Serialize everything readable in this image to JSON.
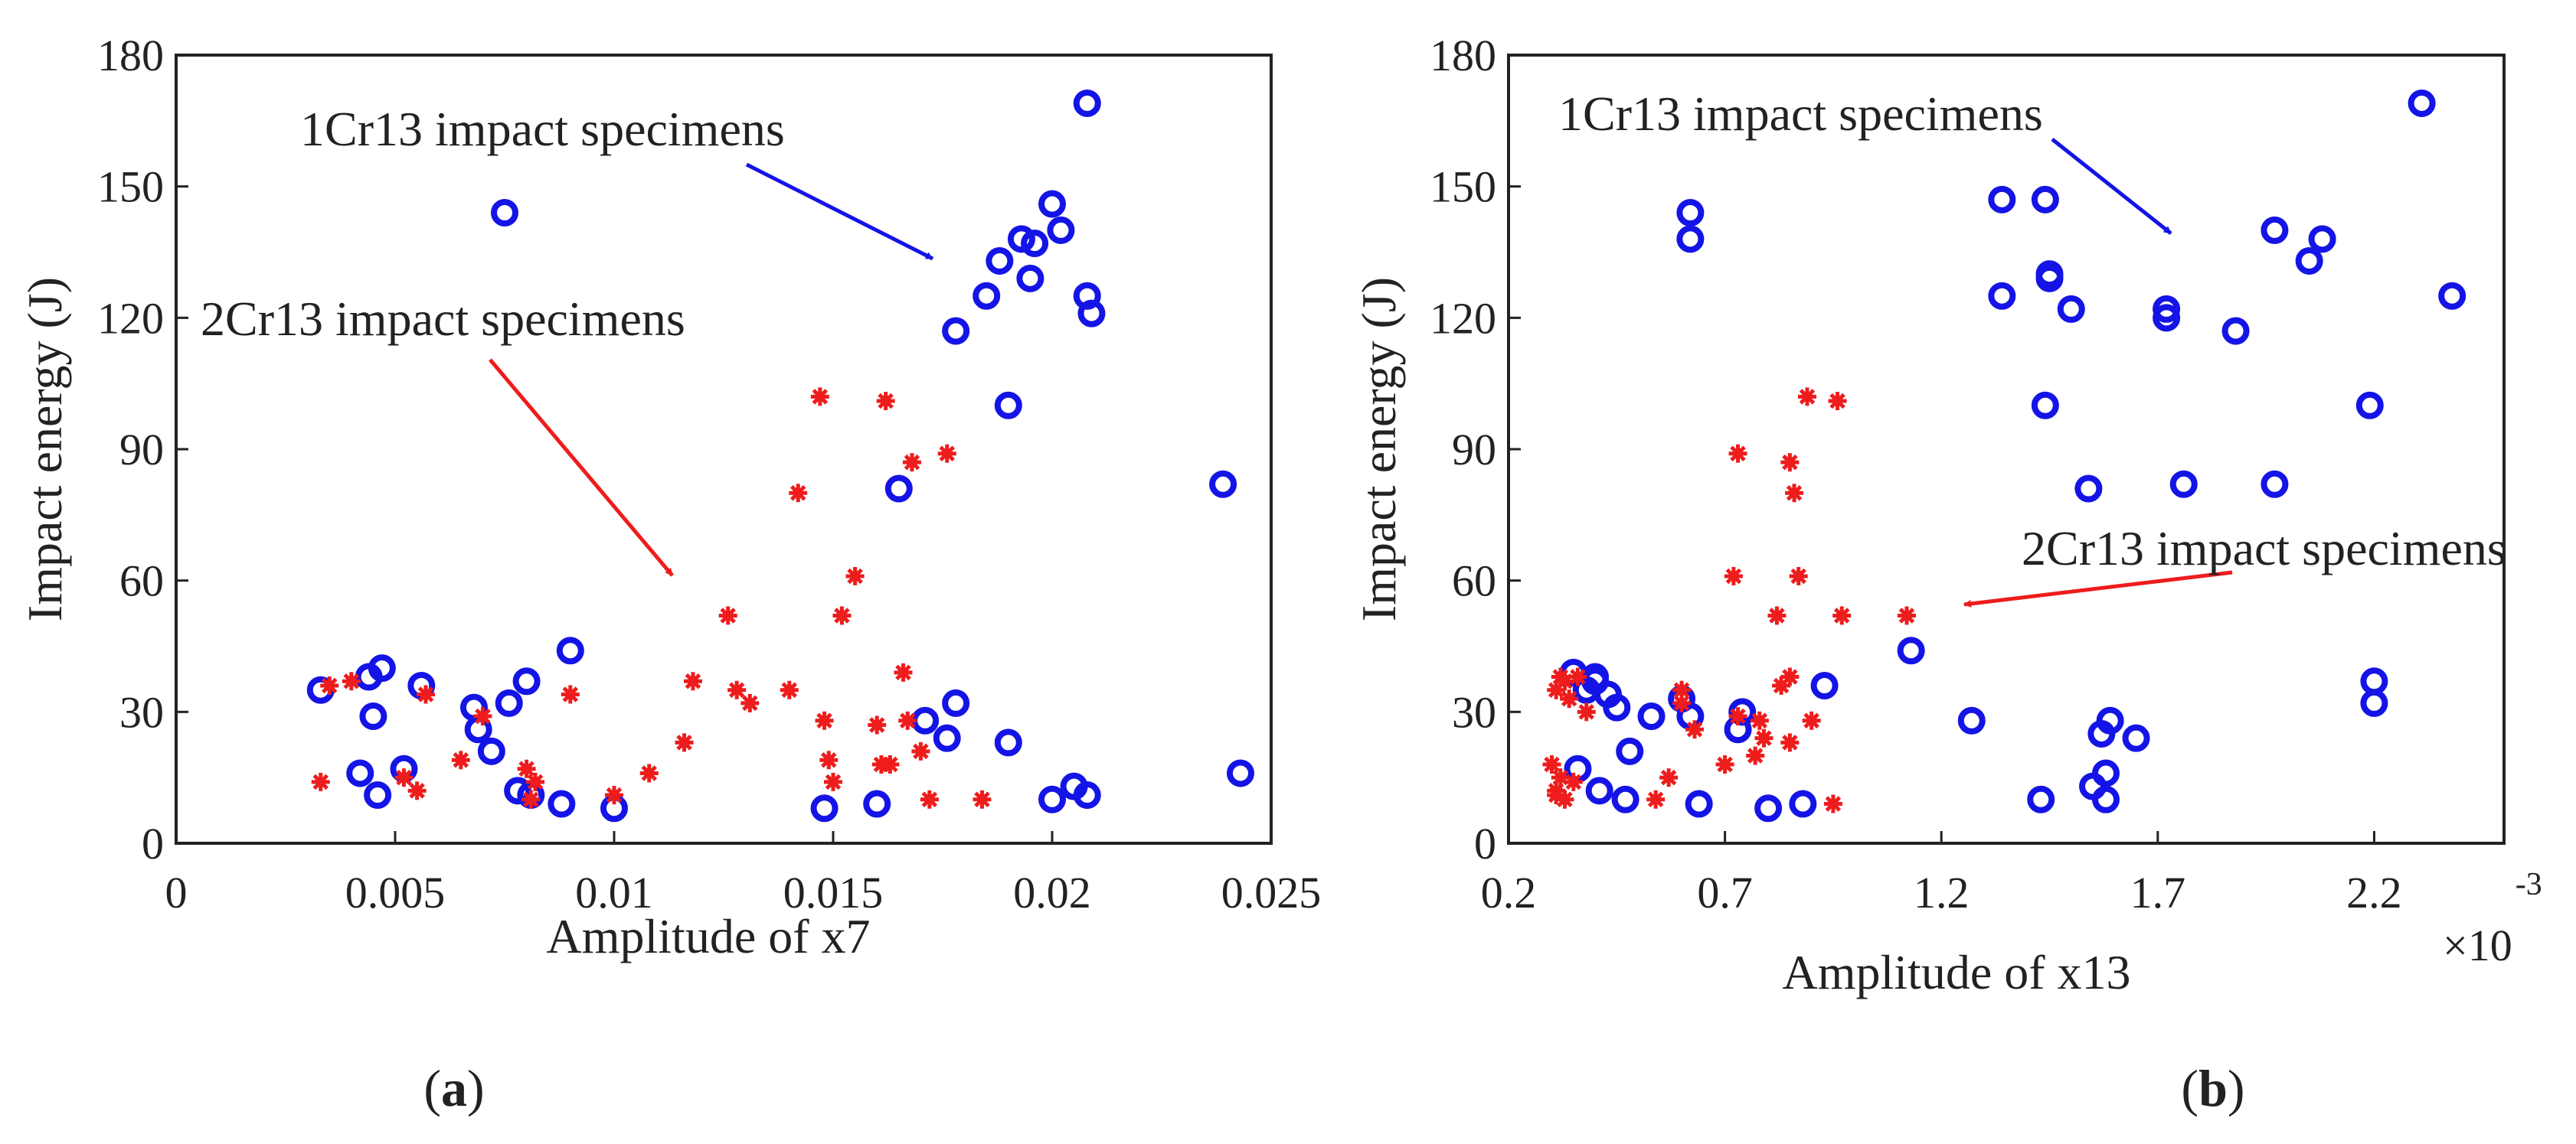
{
  "chart_data": [
    {
      "type": "scatter",
      "panel_label": "(a)",
      "panel_letter": "a",
      "xlabel": "Amplitude of x7",
      "ylabel": "Impact energy (J)",
      "xlim": [
        0,
        0.025
      ],
      "ylim": [
        0,
        180
      ],
      "xticks": [
        0,
        0.005,
        0.01,
        0.015,
        0.02,
        0.025
      ],
      "xtick_labels": [
        "0",
        "0.005",
        "0.01",
        "0.015",
        "0.02",
        "0.025"
      ],
      "yticks": [
        0,
        30,
        60,
        90,
        120,
        150,
        180
      ],
      "ytick_labels": [
        "0",
        "30",
        "60",
        "90",
        "120",
        "150",
        "180"
      ],
      "exponent_label": "",
      "series": [
        {
          "name": "1Cr13 impact specimens",
          "marker": "circle-open",
          "color": "#1414e6",
          "x": [
            0.0033,
            0.0042,
            0.0044,
            0.0045,
            0.0046,
            0.0047,
            0.0052,
            0.0056,
            0.0068,
            0.0069,
            0.0072,
            0.0076,
            0.0078,
            0.008,
            0.0081,
            0.0088,
            0.009,
            0.01,
            0.0075,
            0.0148,
            0.016,
            0.0171,
            0.0176,
            0.0178,
            0.019,
            0.02,
            0.0205,
            0.0208,
            0.0239,
            0.0243,
            0.0165,
            0.0178,
            0.0185,
            0.0188,
            0.019,
            0.0193,
            0.0195,
            0.0196,
            0.02,
            0.0202,
            0.0208,
            0.0209,
            0.0208
          ],
          "y": [
            35,
            16,
            38,
            29,
            11,
            40,
            17,
            36,
            31,
            26,
            21,
            32,
            12,
            37,
            11,
            9,
            44,
            8,
            144,
            8,
            9,
            28,
            24,
            32,
            23,
            10,
            13,
            11,
            82,
            16,
            81,
            117,
            125,
            133,
            100,
            138,
            129,
            137,
            146,
            140,
            125,
            121,
            169
          ]
        },
        {
          "name": "2Cr13 impact specimens",
          "marker": "asterisk",
          "color": "#ee1c1c",
          "x": [
            0.0033,
            0.0035,
            0.004,
            0.0052,
            0.0055,
            0.0057,
            0.0065,
            0.007,
            0.008,
            0.0081,
            0.0082,
            0.009,
            0.01,
            0.0108,
            0.0116,
            0.0118,
            0.0126,
            0.0128,
            0.0131,
            0.014,
            0.0142,
            0.0147,
            0.0148,
            0.0149,
            0.015,
            0.0152,
            0.0155,
            0.016,
            0.0161,
            0.0162,
            0.0163,
            0.0166,
            0.0167,
            0.0168,
            0.017,
            0.0172,
            0.0176,
            0.0184
          ],
          "y": [
            14,
            36,
            37,
            15,
            12,
            34,
            19,
            29,
            17,
            10,
            14,
            34,
            11,
            16,
            23,
            37,
            52,
            35,
            32,
            35,
            80,
            102,
            28,
            19,
            14,
            52,
            61,
            27,
            18,
            101,
            18,
            39,
            28,
            87,
            21,
            10,
            89,
            10
          ]
        }
      ],
      "annotations": [
        {
          "text": "1Cr13 impact specimens",
          "color": "#1414e6"
        },
        {
          "text": "2Cr13 impact specimens",
          "color": "#ee1c1c"
        }
      ]
    },
    {
      "type": "scatter",
      "panel_label": "(b)",
      "panel_letter": "b",
      "xlabel": "Amplitude of x13",
      "ylabel": "Impact energy (J)",
      "xlim": [
        0.2,
        2.5
      ],
      "ylim": [
        0,
        180
      ],
      "xticks": [
        0.2,
        0.7,
        1.2,
        1.7,
        2.2
      ],
      "xtick_labels": [
        "0.2",
        "0.7",
        "1.2",
        "1.7",
        "2.2"
      ],
      "yticks": [
        0,
        30,
        60,
        90,
        120,
        150,
        180
      ],
      "ytick_labels": [
        "0",
        "30",
        "60",
        "90",
        "120",
        "150",
        "180"
      ],
      "exponent_label": "×10",
      "exponent_power": "-3",
      "series": [
        {
          "name": "1Cr13 impact specimens",
          "marker": "circle-open",
          "color": "#1414e6",
          "x": [
            0.35,
            0.36,
            0.38,
            0.4,
            0.4,
            0.41,
            0.43,
            0.45,
            0.47,
            0.48,
            0.53,
            0.6,
            0.62,
            0.64,
            0.73,
            0.74,
            0.8,
            0.88,
            0.93,
            1.13,
            1.27,
            1.43,
            1.55,
            1.57,
            1.58,
            1.58,
            1.59,
            1.65,
            2.2,
            2.2,
            0.62,
            0.62,
            1.34,
            1.34,
            1.44,
            1.44,
            1.45,
            1.45,
            1.5,
            1.72,
            1.72,
            1.88,
            1.97,
            1.97,
            2.05,
            2.08,
            2.19,
            2.31,
            2.38,
            1.54,
            1.76
          ],
          "y": [
            39,
            17,
            35,
            37,
            38,
            12,
            34,
            31,
            10,
            21,
            29,
            33,
            29,
            9,
            26,
            30,
            8,
            9,
            36,
            44,
            28,
            10,
            13,
            25,
            10,
            16,
            28,
            24,
            37,
            32,
            144,
            138,
            147,
            125,
            100,
            147,
            129,
            130,
            122,
            122,
            120,
            117,
            140,
            82,
            133,
            138,
            100,
            169,
            125,
            81,
            82
          ]
        },
        {
          "name": "2Cr13 impact specimens",
          "marker": "asterisk",
          "color": "#ee1c1c",
          "x": [
            0.3,
            0.31,
            0.31,
            0.31,
            0.32,
            0.32,
            0.33,
            0.33,
            0.34,
            0.35,
            0.36,
            0.38,
            0.54,
            0.57,
            0.6,
            0.6,
            0.63,
            0.7,
            0.72,
            0.73,
            0.78,
            0.79,
            0.82,
            0.83,
            0.85,
            0.86,
            0.87,
            0.89,
            0.9,
            0.95,
            0.96,
            0.97,
            1.12,
            0.73,
            0.77,
            0.85,
            0.85
          ],
          "y": [
            18,
            12,
            35,
            11,
            38,
            15,
            37,
            10,
            33,
            14,
            38,
            30,
            10,
            15,
            32,
            35,
            26,
            18,
            61,
            89,
            28,
            24,
            52,
            36,
            87,
            80,
            61,
            102,
            28,
            9,
            101,
            52,
            52,
            29,
            20,
            38,
            23
          ]
        }
      ],
      "annotations": [
        {
          "text": "1Cr13 impact specimens",
          "color": "#1414e6"
        },
        {
          "text": "2Cr13 impact specimens",
          "color": "#ee1c1c"
        }
      ]
    }
  ]
}
